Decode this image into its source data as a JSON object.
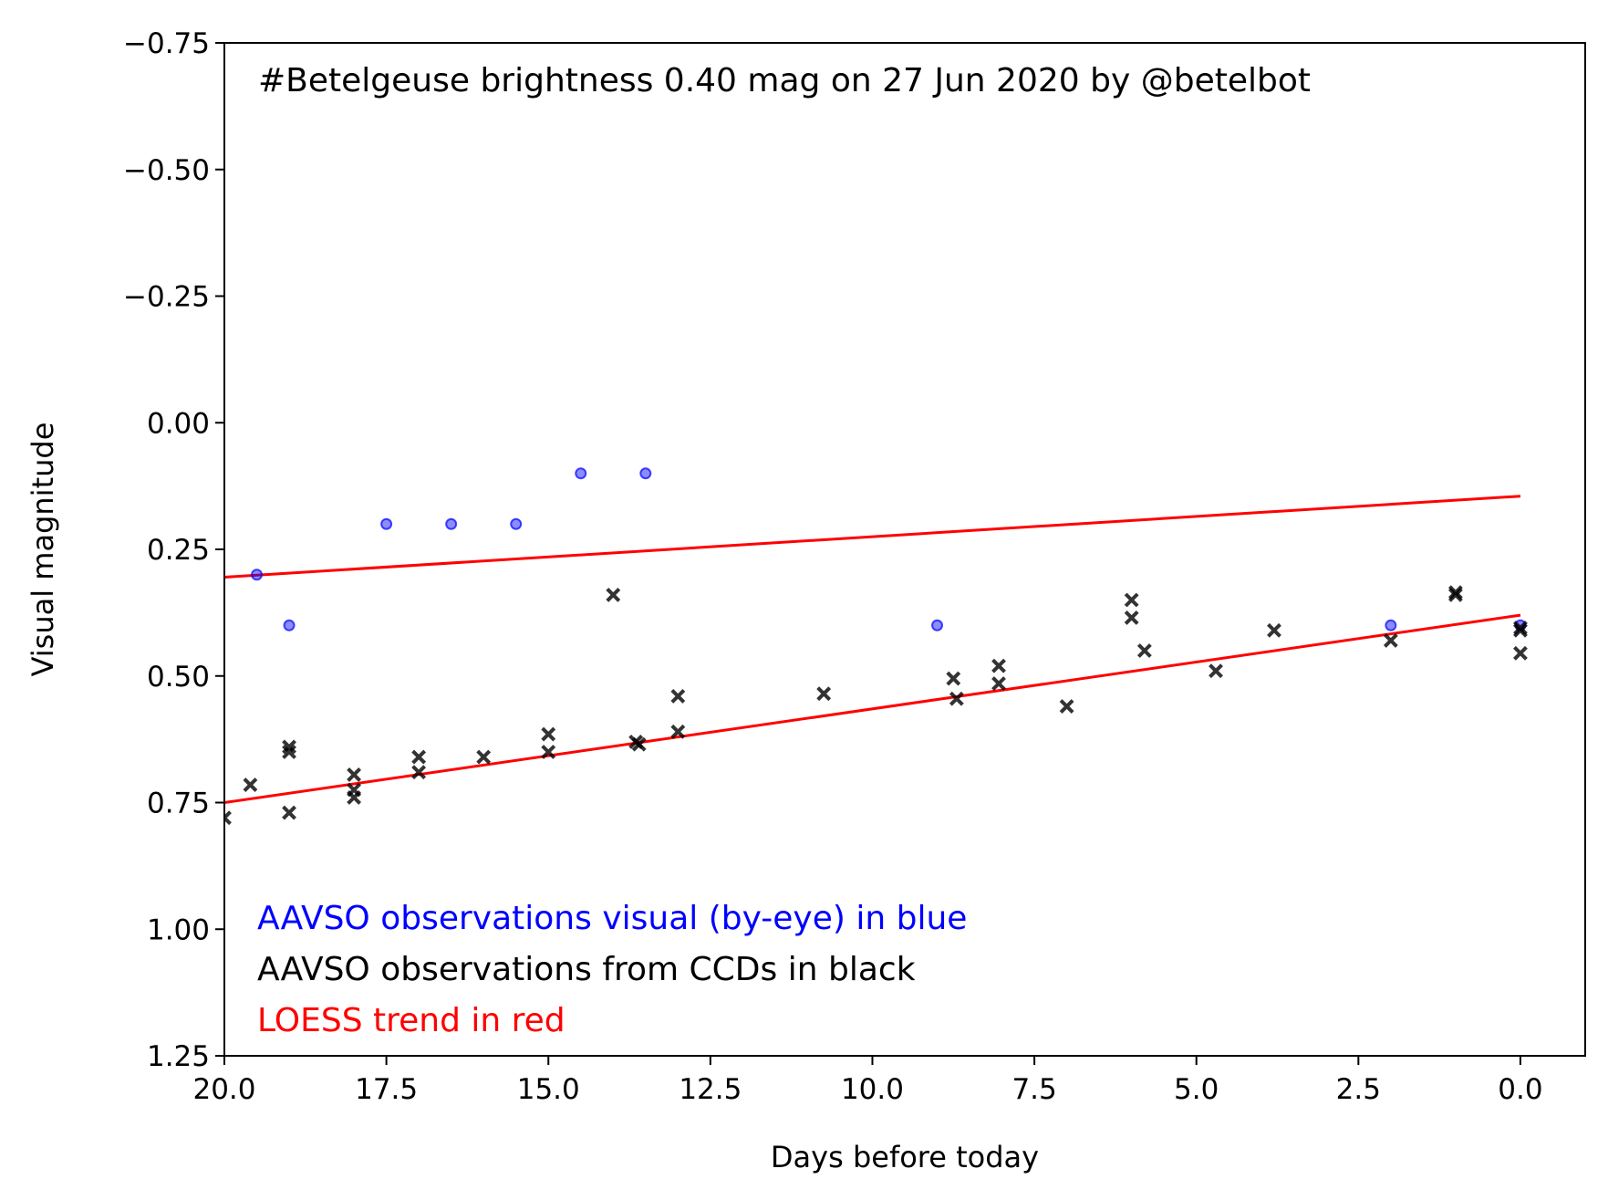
{
  "chart_data": {
    "type": "scatter",
    "title": "#Betelgeuse brightness 0.40 mag on 27 Jun 2020 by @betelbot",
    "xlabel": "Days before today",
    "ylabel": "Visual magnitude",
    "xlim": [
      20.0,
      -1.0
    ],
    "ylim": [
      -0.75,
      1.25
    ],
    "y_inverted": true,
    "grid": false,
    "x_ticks": [
      "20.0",
      "17.5",
      "15.0",
      "12.5",
      "10.0",
      "7.5",
      "5.0",
      "2.5",
      "0.0"
    ],
    "x_tick_values": [
      20.0,
      17.5,
      15.0,
      12.5,
      10.0,
      7.5,
      5.0,
      2.5,
      0.0
    ],
    "y_ticks": [
      "−0.75",
      "−0.50",
      "−0.25",
      "0.00",
      "0.25",
      "0.50",
      "0.75",
      "1.00",
      "1.25"
    ],
    "y_tick_values": [
      -0.75,
      -0.5,
      -0.25,
      0.0,
      0.25,
      0.5,
      0.75,
      1.0,
      1.25
    ],
    "annotations": [
      {
        "text": "AAVSO observations visual (by-eye) in blue",
        "color": "#0000ff"
      },
      {
        "text": "AAVSO observations from CCDs in black",
        "color": "#000000"
      },
      {
        "text": "LOESS trend in red",
        "color": "#ff0000"
      }
    ],
    "series": [
      {
        "kind": "visual",
        "marker": "circle",
        "color": "#0000ff",
        "points": [
          [
            19.5,
            0.3
          ],
          [
            19.0,
            0.4
          ],
          [
            17.5,
            0.2
          ],
          [
            16.5,
            0.2
          ],
          [
            15.5,
            0.2
          ],
          [
            14.5,
            0.1
          ],
          [
            13.5,
            0.1
          ],
          [
            9.0,
            0.4
          ],
          [
            2.0,
            0.4
          ],
          [
            0.0,
            0.4
          ]
        ]
      },
      {
        "kind": "ccd",
        "marker": "x",
        "color": "#000000",
        "points": [
          [
            20.0,
            0.78
          ],
          [
            19.6,
            0.715
          ],
          [
            19.0,
            0.64
          ],
          [
            19.0,
            0.65
          ],
          [
            19.0,
            0.77
          ],
          [
            18.0,
            0.695
          ],
          [
            18.0,
            0.725
          ],
          [
            18.0,
            0.74
          ],
          [
            17.0,
            0.66
          ],
          [
            17.0,
            0.69
          ],
          [
            16.0,
            0.66
          ],
          [
            15.0,
            0.615
          ],
          [
            15.0,
            0.65
          ],
          [
            14.0,
            0.34
          ],
          [
            13.65,
            0.63
          ],
          [
            13.6,
            0.635
          ],
          [
            13.0,
            0.54
          ],
          [
            13.0,
            0.61
          ],
          [
            10.75,
            0.535
          ],
          [
            8.75,
            0.505
          ],
          [
            8.7,
            0.545
          ],
          [
            8.05,
            0.48
          ],
          [
            8.05,
            0.515
          ],
          [
            7.0,
            0.56
          ],
          [
            6.0,
            0.35
          ],
          [
            6.0,
            0.385
          ],
          [
            5.8,
            0.45
          ],
          [
            4.7,
            0.49
          ],
          [
            3.8,
            0.41
          ],
          [
            2.0,
            0.43
          ],
          [
            1.0,
            0.335
          ],
          [
            1.0,
            0.34
          ],
          [
            0.0,
            0.405
          ],
          [
            0.0,
            0.41
          ],
          [
            0.0,
            0.455
          ]
        ]
      },
      {
        "kind": "trend-upper",
        "marker": "line",
        "color": "#ff0000",
        "points": [
          [
            20.0,
            0.305
          ],
          [
            0.0,
            0.145
          ]
        ]
      },
      {
        "kind": "trend-lower",
        "marker": "line",
        "color": "#ff0000",
        "points": [
          [
            20.0,
            0.75
          ],
          [
            0.0,
            0.38
          ]
        ]
      }
    ]
  }
}
